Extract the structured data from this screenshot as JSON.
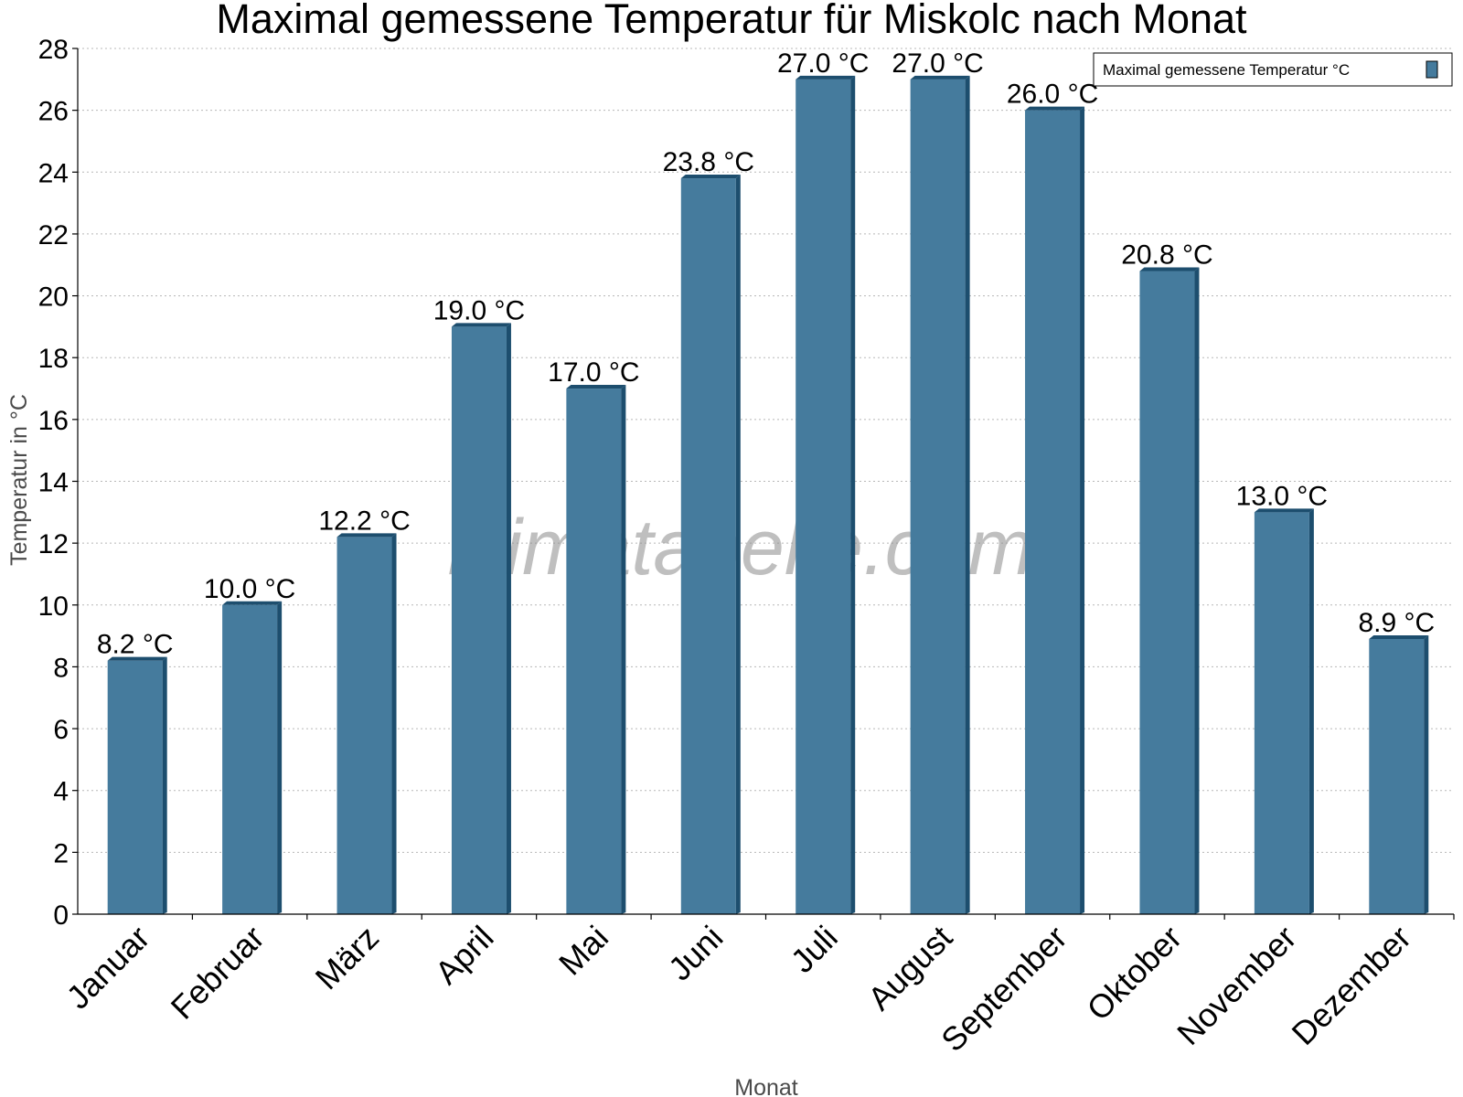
{
  "chart_data": {
    "type": "bar",
    "title": "Maximal gemessene Temperatur für Miskolc nach Monat",
    "xlabel": "Monat",
    "ylabel": "Temperatur in °C",
    "categories": [
      "Januar",
      "Februar",
      "März",
      "April",
      "Mai",
      "Juni",
      "Juli",
      "August",
      "September",
      "Oktober",
      "November",
      "Dezember"
    ],
    "series": [
      {
        "name": "Maximal gemessene Temperatur °C",
        "values": [
          8.2,
          10.0,
          12.2,
          19.0,
          17.0,
          23.8,
          27.0,
          27.0,
          26.0,
          20.8,
          13.0,
          8.9
        ],
        "labels": [
          "8.2 °C",
          "10.0 °C",
          "12.2 °C",
          "19.0 °C",
          "17.0 °C",
          "23.8 °C",
          "27.0 °C",
          "27.0 °C",
          "26.0 °C",
          "20.8 °C",
          "13.0 °C",
          "8.9 °C"
        ],
        "color": "#457b9d",
        "edge_color": "#1d4e6e"
      }
    ],
    "ylim": [
      0,
      28
    ],
    "yticks": [
      0,
      2,
      4,
      6,
      8,
      10,
      12,
      14,
      16,
      18,
      20,
      22,
      24,
      26,
      28
    ],
    "grid": true,
    "legend_position": "top-right"
  },
  "watermark": "klimatabelle.com"
}
